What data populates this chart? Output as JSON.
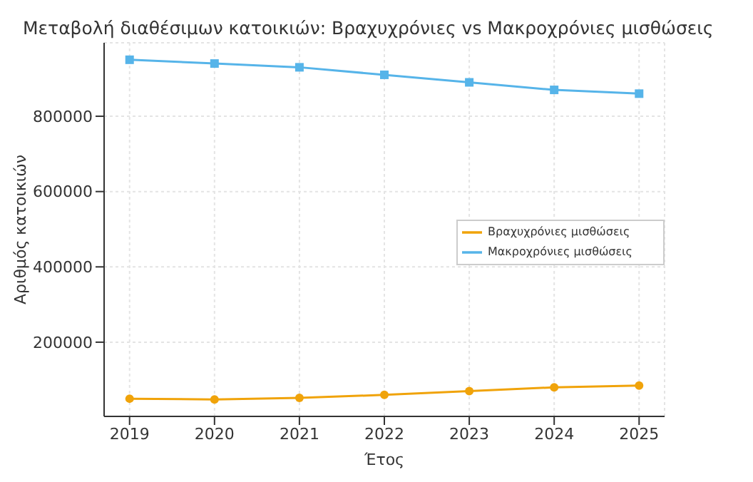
{
  "chart_data": {
    "type": "line",
    "title": "Μεταβολή διαθέσιμων κατοικιών: Βραχυχρόνιες vs Μακροχρόνιες μισθώσεις",
    "xlabel": "Έτος",
    "ylabel": "Αριθμός κατοικιών",
    "x": [
      2019,
      2020,
      2021,
      2022,
      2023,
      2024,
      2025
    ],
    "series": [
      {
        "name": "Βραχυχρόνιες μισθώσεις",
        "color": "#f0a30a",
        "marker": "circle",
        "values": [
          50000,
          48000,
          52000,
          60000,
          70000,
          80000,
          85000
        ]
      },
      {
        "name": "Μακροχρόνιες μισθώσεις",
        "color": "#56b4e9",
        "marker": "square",
        "values": [
          950000,
          940000,
          930000,
          910000,
          890000,
          870000,
          860000
        ]
      }
    ],
    "xlim": [
      2018.7,
      2025.3
    ],
    "xticks": [
      2019,
      2020,
      2021,
      2022,
      2023,
      2024,
      2025
    ],
    "ylim": [
      2900,
      995100
    ],
    "yticks": [
      200000,
      400000,
      600000,
      800000
    ],
    "grid": true,
    "legend": "right",
    "line_style": "solid"
  }
}
